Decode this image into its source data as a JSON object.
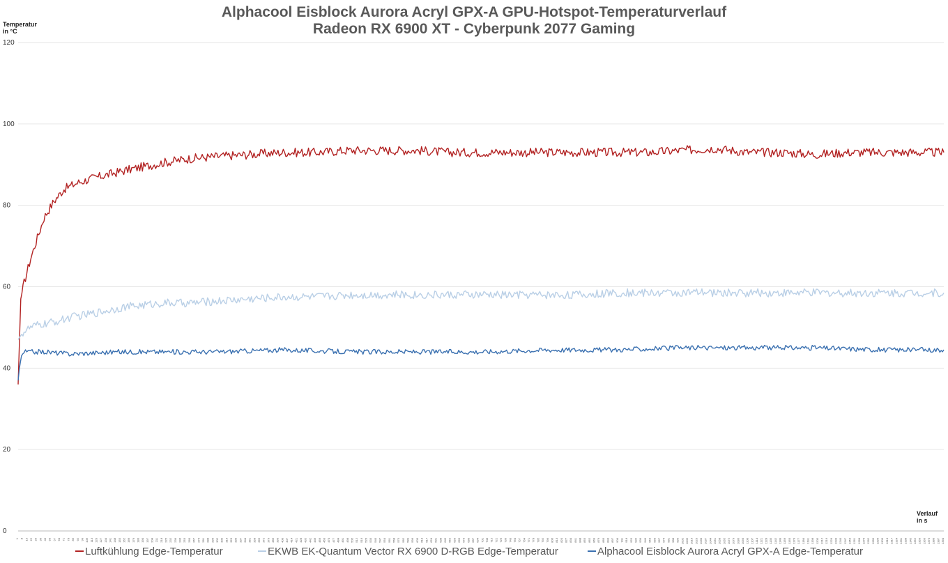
{
  "chart_data": {
    "type": "line",
    "title": "Alphacool Eisblock Aurora Acryl GPX-A GPU-Hotspot-Temperaturverlauf",
    "subtitle": "Radeon RX 6900 XT - Cyberpunk 2077 Gaming",
    "ylabel": "Temperatur in °C",
    "xlabel": "Verlauf in s",
    "ylim": [
      0,
      120
    ],
    "yticks": [
      0,
      20,
      40,
      60,
      80,
      100,
      120
    ],
    "xlim": [
      1,
      1394
    ],
    "xtick_step": 7,
    "grid": true,
    "legend_position": "bottom",
    "series": [
      {
        "name": "Luftkühlung Edge-Temperatur",
        "color": "#b22222",
        "x": [
          1,
          5,
          10,
          20,
          30,
          40,
          55,
          70,
          90,
          110,
          135,
          160,
          190,
          220,
          260,
          300,
          350,
          400,
          450,
          500,
          550,
          600,
          650,
          700,
          750,
          800,
          850,
          900,
          950,
          1000,
          1050,
          1100,
          1150,
          1200,
          1250,
          1300,
          1350,
          1394
        ],
        "y": [
          36,
          57,
          61,
          67,
          72,
          77,
          81,
          84,
          85.5,
          86.5,
          87.5,
          88.5,
          89.5,
          90.5,
          91.5,
          92,
          92.5,
          93,
          93,
          93.5,
          93.5,
          93.5,
          93,
          93,
          93,
          93,
          93,
          93,
          93,
          93.5,
          94,
          93,
          93,
          92.5,
          93,
          93,
          93,
          93
        ]
      },
      {
        "name": "EKWB EK-Quantum Vector RX 6900 D-RGB Edge-Temperatur",
        "color": "#b9cfe6",
        "x": [
          1,
          5,
          10,
          20,
          30,
          45,
          60,
          80,
          100,
          130,
          160,
          190,
          220,
          260,
          300,
          350,
          400,
          450,
          500,
          550,
          600,
          650,
          700,
          750,
          800,
          850,
          900,
          950,
          1000,
          1050,
          1100,
          1150,
          1200,
          1250,
          1300,
          1350,
          1394
        ],
        "y": [
          47,
          48,
          49,
          50,
          50.5,
          51,
          51.5,
          52.5,
          53,
          54,
          55,
          55.5,
          56,
          56,
          56.5,
          57,
          57.5,
          57.5,
          58,
          58,
          58,
          58,
          58,
          58,
          58,
          58,
          58.5,
          58.5,
          58.5,
          58.5,
          58.5,
          58.5,
          58.5,
          58.5,
          58.5,
          58.5,
          58.5
        ]
      },
      {
        "name": "Alphacool Eisblock Aurora Acryl GPX-A Edge-Temperatur",
        "color": "#3a70b0",
        "x": [
          1,
          3,
          6,
          10,
          20,
          40,
          80,
          150,
          200,
          300,
          400,
          500,
          600,
          700,
          800,
          900,
          1000,
          1100,
          1200,
          1300,
          1394
        ],
        "y": [
          37,
          40,
          43,
          44,
          44,
          44,
          43.5,
          44,
          44,
          44,
          44.5,
          44,
          44,
          44,
          44.5,
          44.5,
          45,
          45,
          45,
          44.5,
          44.5
        ]
      }
    ]
  }
}
